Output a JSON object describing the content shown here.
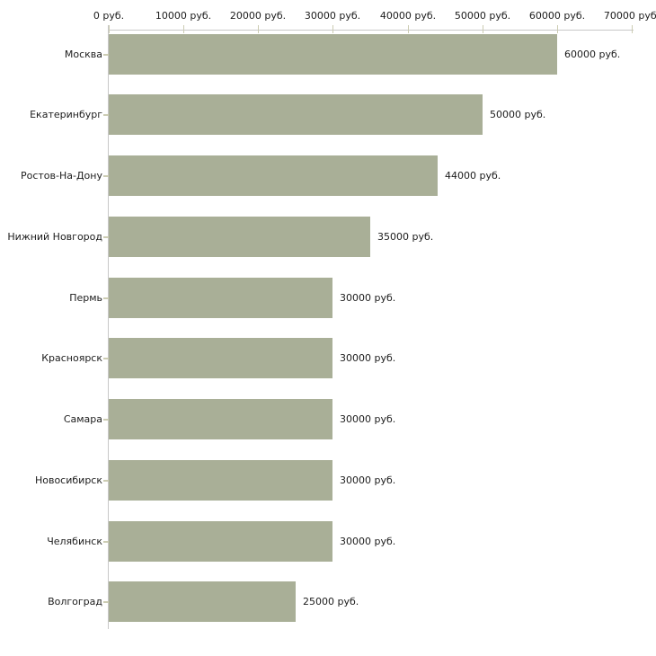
{
  "chart_data": {
    "type": "bar",
    "orientation": "horizontal",
    "categories": [
      "Москва",
      "Екатеринбург",
      "Ростов-На-Дону",
      "Нижний Новгород",
      "Пермь",
      "Красноярск",
      "Самара",
      "Новосибирск",
      "Челябинск",
      "Волгоград"
    ],
    "values": [
      60000,
      50000,
      44000,
      35000,
      30000,
      30000,
      30000,
      30000,
      30000,
      25000
    ],
    "value_labels": [
      "60000 руб.",
      "50000 руб.",
      "44000 руб.",
      "35000 руб.",
      "30000 руб.",
      "30000 руб.",
      "30000 руб.",
      "30000 руб.",
      "30000 руб.",
      "25000 руб."
    ],
    "x_ticks": [
      0,
      10000,
      20000,
      30000,
      40000,
      50000,
      60000,
      70000
    ],
    "x_tick_labels": [
      "0 руб.",
      "10000 руб.",
      "20000 руб.",
      "30000 руб.",
      "40000 руб.",
      "50000 руб.",
      "60000 руб.",
      "70000 руб."
    ],
    "xlim": [
      0,
      70000
    ],
    "x_axis_position": "top",
    "grid": false,
    "legend": false,
    "bar_color": "#a9af97",
    "axis_color": "#c8c8c8",
    "tick_color": "#ccccb3",
    "text_color": "#1c1c1c",
    "background_color": "#ffffff"
  }
}
